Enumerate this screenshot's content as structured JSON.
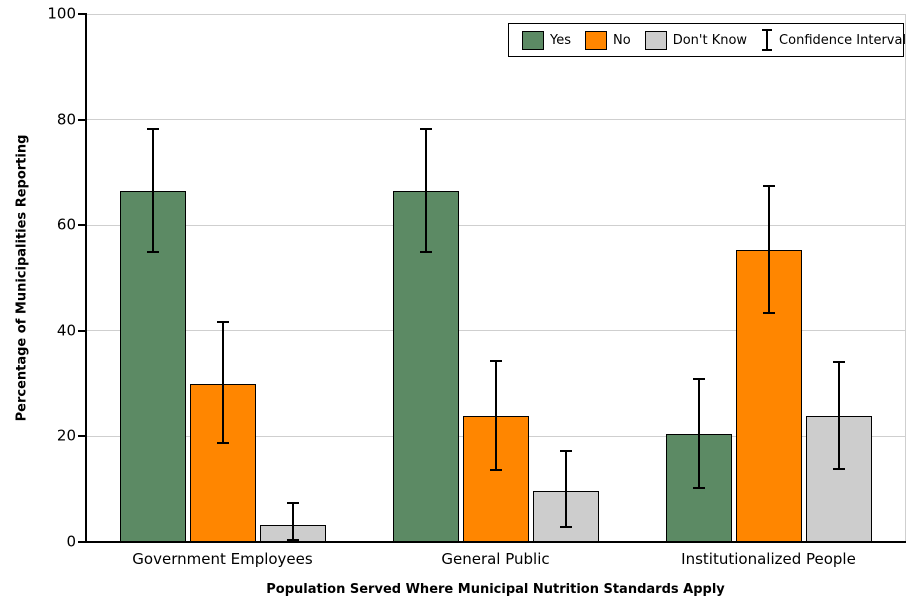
{
  "chart_data": {
    "type": "bar",
    "title": "",
    "xlabel": "Population Served Where Municipal Nutrition Standards Apply",
    "ylabel": "Percentage of Municipalities Reporting",
    "ylim": [
      0,
      100
    ],
    "yticks": [
      0,
      20,
      40,
      60,
      80,
      100
    ],
    "grid": true,
    "categories": [
      "Government Employees",
      "General Public",
      "Institutionalized People"
    ],
    "series": [
      {
        "name": "Yes",
        "color": "#5c8a64",
        "values": [
          66.5,
          66.5,
          20.5
        ],
        "ci_low": [
          55.0,
          55.0,
          10.3
        ],
        "ci_high": [
          78.3,
          78.3,
          30.9
        ]
      },
      {
        "name": "No",
        "color": "#ff8600",
        "values": [
          30.0,
          23.8,
          55.3
        ],
        "ci_low": [
          18.8,
          13.6,
          43.4
        ],
        "ci_high": [
          41.6,
          34.2,
          67.5
        ]
      },
      {
        "name": "Don't Know",
        "color": "#cdcdcd",
        "values": [
          3.3,
          9.6,
          23.8
        ],
        "ci_low": [
          0.4,
          2.8,
          13.8
        ],
        "ci_high": [
          7.4,
          17.2,
          34.1
        ]
      }
    ],
    "legend": {
      "position": "top-right",
      "ci_label": "Confidence Interval"
    }
  }
}
